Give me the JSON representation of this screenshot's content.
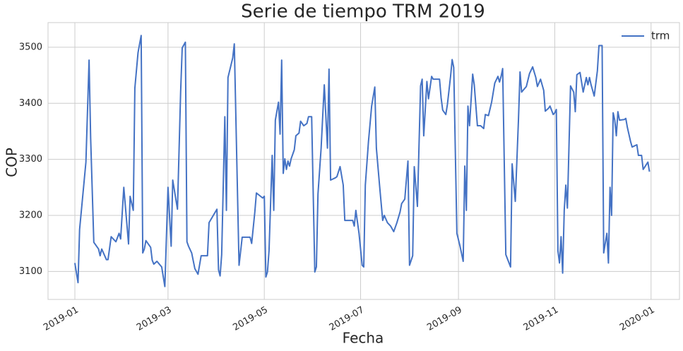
{
  "chart_data": {
    "type": "line",
    "title": "Serie de tiempo TRM 2019",
    "x_label": "Fecha",
    "y_label": "COP",
    "x": [
      0,
      2,
      3,
      7,
      9,
      10,
      12,
      15,
      16,
      17,
      20,
      21,
      23,
      26,
      28,
      29,
      31,
      34,
      35,
      37,
      38,
      40,
      42,
      43,
      44,
      45,
      48,
      49,
      50,
      52,
      55,
      57,
      59,
      61,
      62,
      65,
      67,
      68,
      70,
      71,
      72,
      74,
      76,
      78,
      80,
      83,
      84,
      85,
      90,
      91,
      92,
      93,
      95,
      96,
      97,
      100,
      101,
      104,
      106,
      109,
      111,
      112,
      114,
      115,
      119,
      120,
      121,
      122,
      123,
      125,
      126,
      127,
      129,
      130,
      131,
      132,
      133,
      134,
      135,
      136,
      137,
      139,
      140,
      142,
      143,
      145,
      147,
      148,
      150,
      152,
      153,
      154,
      156,
      158,
      160,
      161,
      162,
      165,
      166,
      168,
      170,
      171,
      174,
      176,
      177,
      178,
      180,
      182,
      183,
      184,
      186,
      188,
      190,
      191,
      193,
      195,
      196,
      198,
      200,
      202,
      204,
      206,
      207,
      209,
      211,
      212,
      214,
      215,
      217,
      219,
      220,
      221,
      223,
      224,
      226,
      227,
      230,
      231,
      232,
      233,
      235,
      236,
      238,
      239,
      240,
      242,
      244,
      246,
      247,
      248,
      249,
      250,
      252,
      253,
      255,
      257,
      259,
      260,
      262,
      264,
      266,
      268,
      269,
      270,
      271,
      273,
      276,
      277,
      279,
      281,
      282,
      283,
      286,
      288,
      290,
      292,
      293,
      295,
      297,
      298,
      300,
      301,
      303,
      304,
      305,
      306,
      307,
      308,
      309,
      310,
      311,
      312,
      314,
      316,
      317,
      318,
      320,
      322,
      324,
      325,
      326,
      327,
      329,
      331,
      332,
      334,
      335,
      337,
      338,
      339,
      340,
      341,
      342,
      343,
      344,
      345,
      348,
      349,
      350,
      352,
      353,
      356,
      357,
      359,
      360,
      363,
      364
    ],
    "series": [
      {
        "name": "trm",
        "color": "#4472c4",
        "values": [
          3115,
          3080,
          3175,
          3295,
          3477,
          3338,
          3152,
          3140,
          3128,
          3140,
          3121,
          3121,
          3162,
          3153,
          3168,
          3158,
          3250,
          3149,
          3234,
          3209,
          3427,
          3490,
          3521,
          3133,
          3140,
          3155,
          3143,
          3120,
          3113,
          3118,
          3108,
          3073,
          3250,
          3145,
          3263,
          3211,
          3420,
          3499,
          3509,
          3153,
          3145,
          3133,
          3105,
          3095,
          3128,
          3128,
          3128,
          3187,
          3211,
          3103,
          3092,
          3130,
          3376,
          3209,
          3446,
          3481,
          3506,
          3111,
          3161,
          3161,
          3161,
          3150,
          3206,
          3240,
          3231,
          3234,
          3090,
          3099,
          3137,
          3307,
          3209,
          3370,
          3402,
          3345,
          3477,
          3275,
          3301,
          3282,
          3297,
          3288,
          3301,
          3317,
          3342,
          3347,
          3368,
          3360,
          3364,
          3376,
          3376,
          3099,
          3108,
          3238,
          3320,
          3433,
          3320,
          3461,
          3263,
          3267,
          3269,
          3287,
          3254,
          3191,
          3191,
          3191,
          3181,
          3209,
          3168,
          3111,
          3108,
          3254,
          3332,
          3395,
          3429,
          3320,
          3254,
          3191,
          3200,
          3187,
          3181,
          3171,
          3187,
          3206,
          3221,
          3229,
          3297,
          3111,
          3128,
          3287,
          3216,
          3431,
          3443,
          3342,
          3439,
          3408,
          3448,
          3443,
          3443,
          3443,
          3410,
          3388,
          3380,
          3398,
          3448,
          3478,
          3464,
          3168,
          3145,
          3118,
          3288,
          3209,
          3395,
          3360,
          3452,
          3433,
          3360,
          3360,
          3355,
          3380,
          3378,
          3402,
          3436,
          3448,
          3438,
          3448,
          3462,
          3130,
          3108,
          3292,
          3225,
          3370,
          3456,
          3420,
          3430,
          3453,
          3465,
          3446,
          3430,
          3443,
          3423,
          3386,
          3391,
          3395,
          3380,
          3383,
          3389,
          3137,
          3115,
          3162,
          3097,
          3209,
          3254,
          3213,
          3431,
          3420,
          3385,
          3451,
          3455,
          3420,
          3446,
          3433,
          3446,
          3433,
          3413,
          3458,
          3503,
          3503,
          3133,
          3168,
          3115,
          3250,
          3200,
          3383,
          3370,
          3342,
          3385,
          3370,
          3371,
          3373,
          3357,
          3332,
          3322,
          3326,
          3307,
          3307,
          3282,
          3295,
          3278
        ]
      }
    ],
    "xlim": [
      -17,
      383
    ],
    "xticks": [
      {
        "value": 0,
        "label": "2019-01"
      },
      {
        "value": 59,
        "label": "2019-03"
      },
      {
        "value": 120,
        "label": "2019-05"
      },
      {
        "value": 181,
        "label": "2019-07"
      },
      {
        "value": 243,
        "label": "2019-09"
      },
      {
        "value": 304,
        "label": "2019-11"
      },
      {
        "value": 365,
        "label": "2020-01"
      }
    ],
    "ylim": [
      3050,
      3544
    ],
    "yticks": [
      3100,
      3200,
      3300,
      3400,
      3500
    ],
    "grid": true,
    "legend": "upper right"
  }
}
